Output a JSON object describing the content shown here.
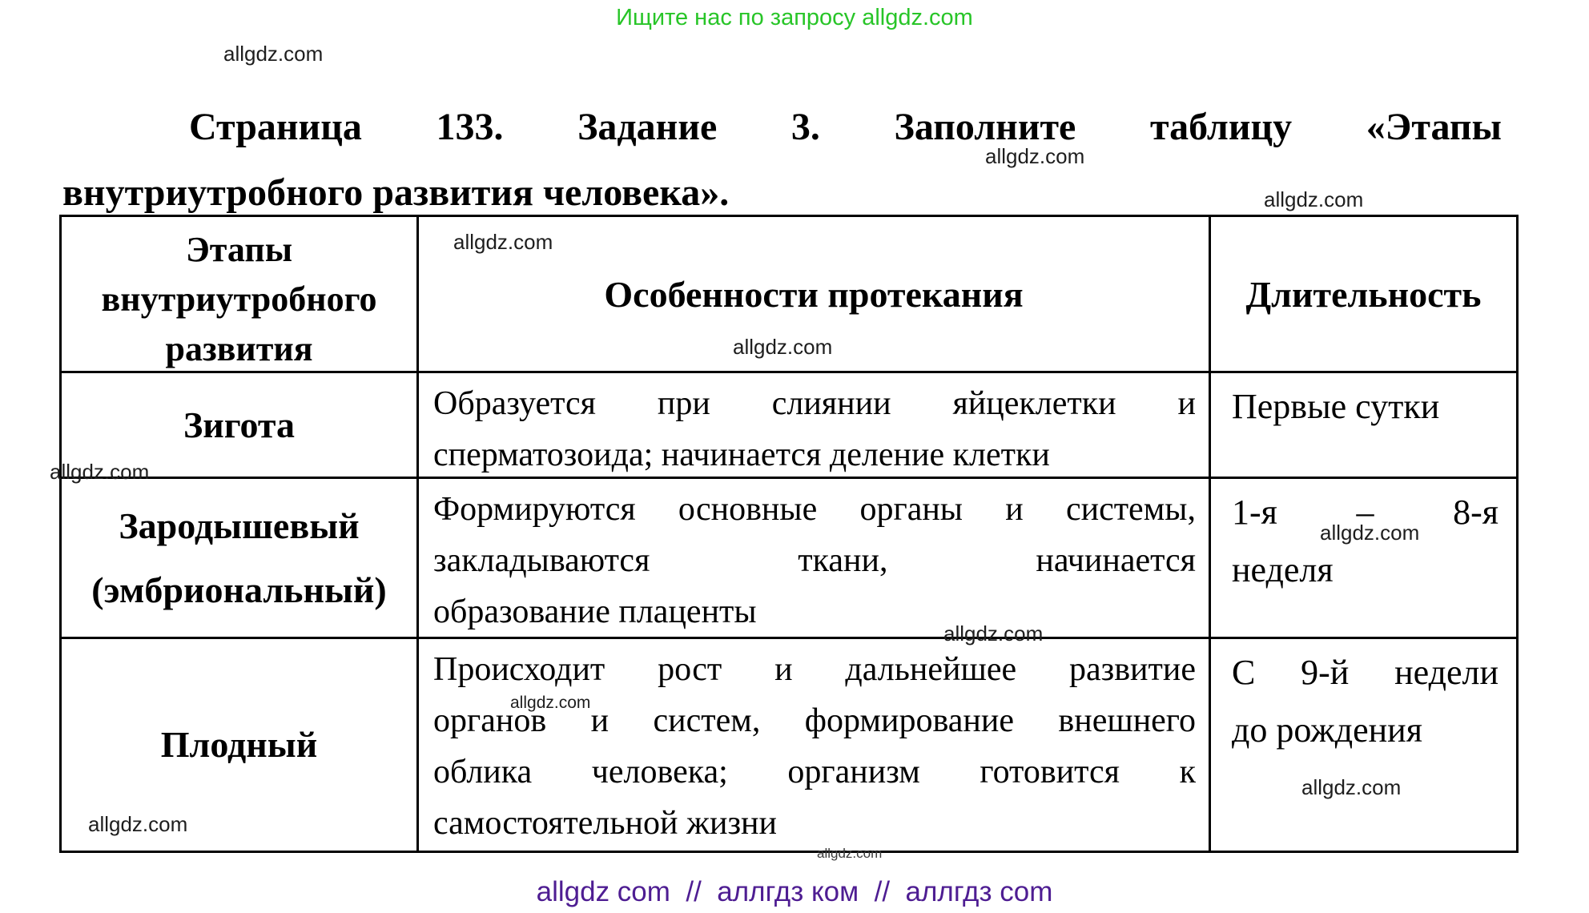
{
  "page": {
    "background": "#ffffff",
    "promo": {
      "text": "Ищите нас по запросу allgdz.com",
      "color": "#28c528"
    },
    "watermark_text": "allgdz.com",
    "footer": {
      "text": "allgdz com  //  аллгдз ком  //  аллгдз com",
      "color": "#4e1d92"
    }
  },
  "title": {
    "line1": "Страница 133. Задание 3. Заполните таблицу «Этапы",
    "line2": "внутриутробного развития человека»."
  },
  "table": {
    "border_color": "#000000",
    "header": {
      "stage_lines": [
        "Этапы",
        "внутриутробного",
        "развития"
      ],
      "features": "Особенности протекания",
      "duration": "Длительность"
    },
    "rows": [
      {
        "stage_lines": [
          "Зигота"
        ],
        "features_lines": [
          "Образуется при слиянии яйцеклетки и",
          "сперматозоида; начинается деление клетки"
        ],
        "duration_lines": [
          "Первые сутки"
        ]
      },
      {
        "stage_lines": [
          "Зародышевый",
          "(эмбриональный)"
        ],
        "features_lines": [
          "Формируются основные органы и системы,",
          "закладываются ткани, начинается",
          "образование плаценты"
        ],
        "duration_lines": [
          "1-я – 8-я",
          "неделя"
        ]
      },
      {
        "stage_lines": [
          "Плодный"
        ],
        "features_lines": [
          "Происходит рост и дальнейшее развитие",
          "органов и систем, формирование внешнего",
          "облика человека; организм готовится к",
          "самостоятельной жизни"
        ],
        "duration_lines": [
          "С 9-й недели",
          "до рождения"
        ]
      }
    ]
  }
}
